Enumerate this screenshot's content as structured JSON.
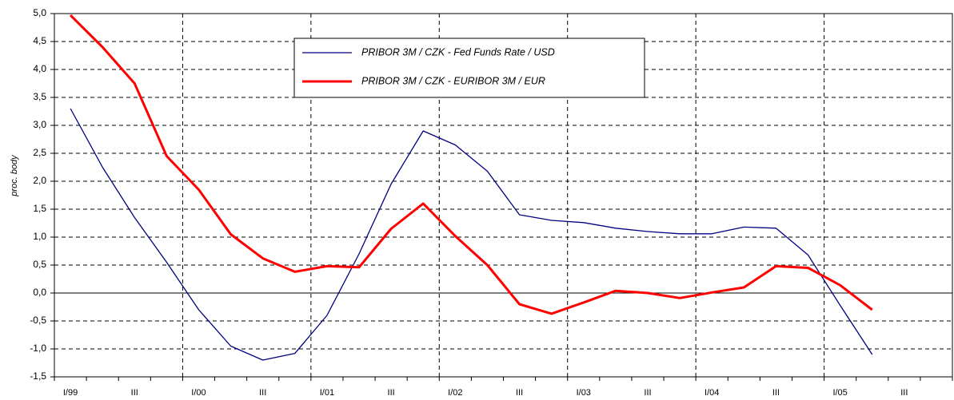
{
  "chart_data": {
    "type": "line",
    "y_label": "proc. body",
    "categories": [
      "I/99",
      null,
      "III",
      null,
      "I/00",
      null,
      "III",
      null,
      "I/01",
      null,
      "III",
      null,
      "I/02",
      null,
      "III",
      null,
      "I/03",
      null,
      "III",
      null,
      "I/04",
      null,
      "III",
      null,
      "I/05",
      null,
      "III",
      null
    ],
    "series": [
      {
        "name": "PRIBOR 3M / CZK - Fed Funds Rate / USD",
        "color": "#000080",
        "values": [
          3.3,
          2.25,
          1.35,
          0.55,
          -0.3,
          -0.95,
          -1.2,
          -1.08,
          -0.4,
          0.7,
          1.95,
          2.9,
          2.65,
          2.18,
          1.4,
          1.3,
          1.26,
          1.16,
          1.1,
          1.06,
          1.06,
          1.18,
          1.16,
          0.68,
          -0.22,
          -1.1,
          null,
          null
        ]
      },
      {
        "name": "PRIBOR 3M / CZK - EURIBOR 3M / EUR",
        "color": "#ff0000",
        "values": [
          4.97,
          4.4,
          3.75,
          2.45,
          1.85,
          1.05,
          0.62,
          0.38,
          0.48,
          0.46,
          1.15,
          1.6,
          1.02,
          0.5,
          -0.2,
          -0.37,
          -0.17,
          0.04,
          0.0,
          -0.09,
          0.01,
          0.1,
          0.48,
          0.45,
          0.14,
          -0.3,
          null,
          null
        ]
      }
    ],
    "ylim": [
      -1.5,
      5
    ],
    "yticks": [
      {
        "value": -1.5,
        "label": "-1,5"
      },
      {
        "value": -1,
        "label": "-1,0"
      },
      {
        "value": -0.5,
        "label": "-0,5"
      },
      {
        "value": 0,
        "label": "0,0"
      },
      {
        "value": 0.5,
        "label": "0,5"
      },
      {
        "value": 1,
        "label": "1,0"
      },
      {
        "value": 1.5,
        "label": "1,5"
      },
      {
        "value": 2,
        "label": "2,0"
      },
      {
        "value": 2.5,
        "label": "2,5"
      },
      {
        "value": 3,
        "label": "3,0"
      },
      {
        "value": 3.5,
        "label": "3,5"
      },
      {
        "value": 4,
        "label": "4,0"
      },
      {
        "value": 4.5,
        "label": "4,5"
      },
      {
        "value": 5,
        "label": "5,0"
      }
    ],
    "grid": true
  }
}
